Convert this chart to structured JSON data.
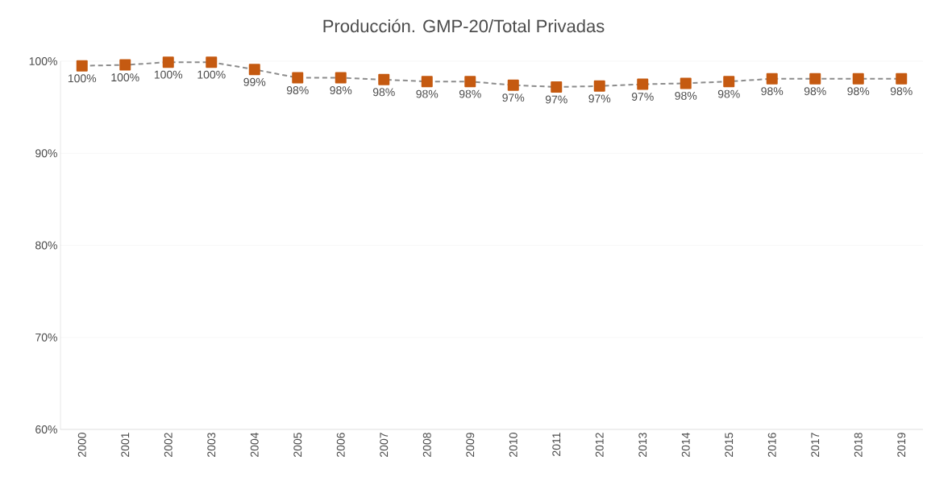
{
  "chart_data": {
    "type": "line",
    "title": "Producción. GMP-20/Total Privadas",
    "categories": [
      "2000",
      "2001",
      "2002",
      "2003",
      "2004",
      "2005",
      "2006",
      "2007",
      "2008",
      "2009",
      "2010",
      "2011",
      "2012",
      "2013",
      "2014",
      "2015",
      "2016",
      "2017",
      "2018",
      "2019"
    ],
    "values": [
      99.5,
      99.6,
      99.9,
      99.9,
      99.1,
      98.2,
      98.2,
      98.0,
      97.8,
      97.8,
      97.4,
      97.2,
      97.3,
      97.5,
      97.6,
      97.8,
      98.1,
      98.1,
      98.1,
      98.1
    ],
    "value_labels": [
      "100%",
      "100%",
      "100%",
      "100%",
      "99%",
      "98%",
      "98%",
      "98%",
      "98%",
      "98%",
      "97%",
      "97%",
      "97%",
      "97%",
      "98%",
      "98%",
      "98%",
      "98%",
      "98%",
      "98%"
    ],
    "color": "#c55a11",
    "ylim": [
      60,
      100
    ],
    "yticks": [
      {
        "value": 60,
        "label": "60%"
      },
      {
        "value": 70,
        "label": "70%"
      },
      {
        "value": 80,
        "label": "80%"
      },
      {
        "value": 90,
        "label": "90%"
      },
      {
        "value": 100,
        "label": "100%"
      }
    ],
    "grid": "y",
    "marker": "square",
    "line_style": "dashed"
  }
}
